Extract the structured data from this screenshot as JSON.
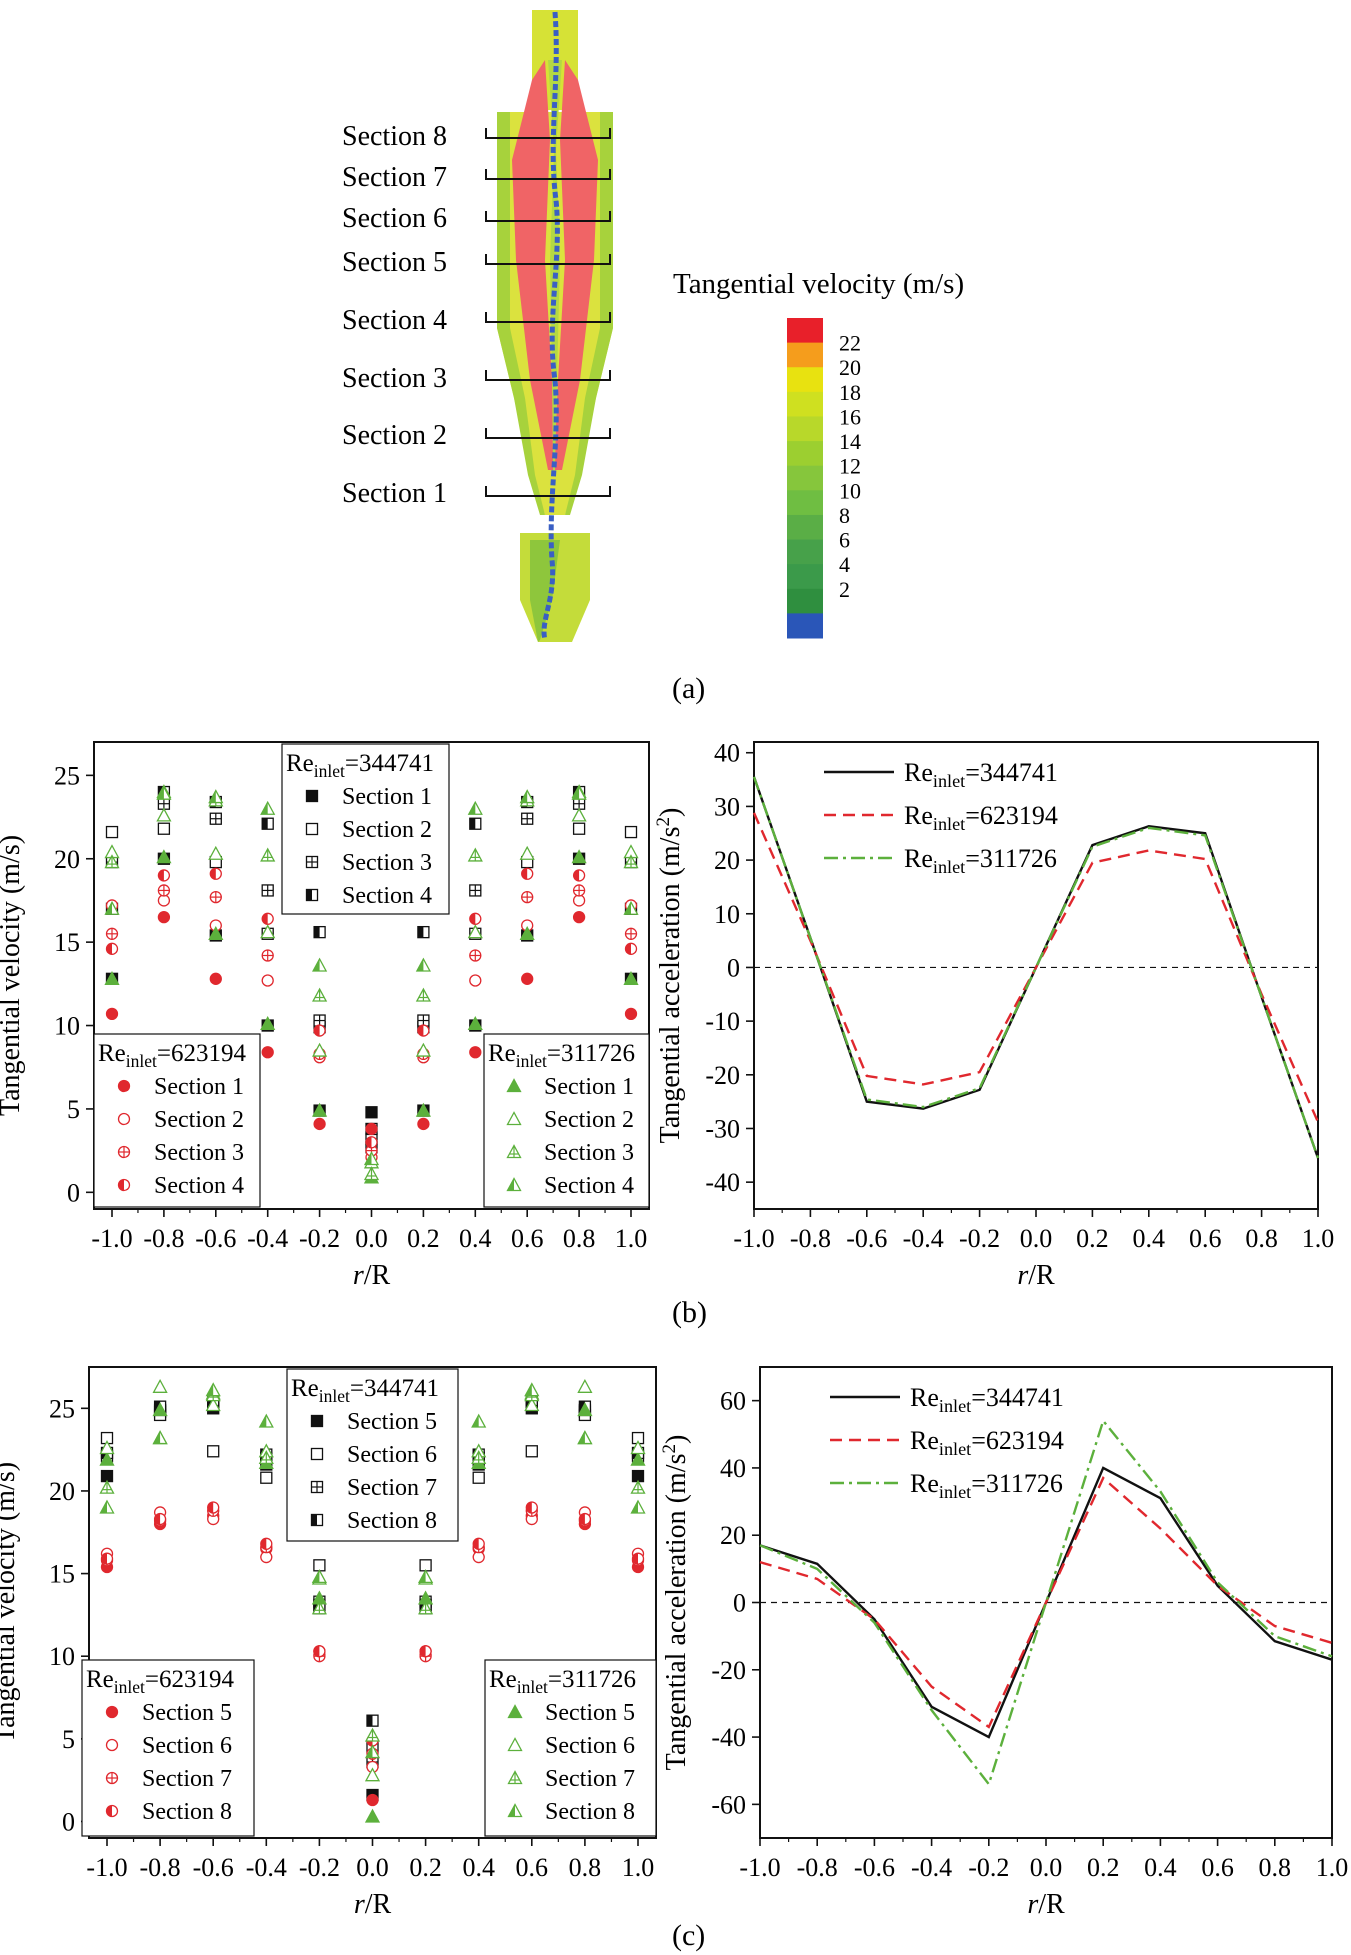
{
  "panel_a": {
    "sections": [
      "Section 8",
      "Section 7",
      "Section 6",
      "Section 5",
      "Section 4",
      "Section 3",
      "Section 2",
      "Section 1"
    ],
    "colorbar_title": "Tangential velocity (m/s)",
    "colorbar_ticks": [
      "22",
      "20",
      "18",
      "16",
      "14",
      "12",
      "10",
      "8",
      "6",
      "4",
      "2"
    ],
    "colorbar_colors": [
      "#e8202a",
      "#f59d1c",
      "#e8e210",
      "#cfe020",
      "#b8d82a",
      "#9ccf30",
      "#86c63c",
      "#6fbe42",
      "#5aae46",
      "#47a14a",
      "#3b9a4a",
      "#2f8f3f",
      "#2a56b8"
    ],
    "label": "(a)"
  },
  "panel_labels": [
    "(b)",
    "(c)"
  ],
  "chart_data": [
    {
      "type": "scatter",
      "label": "(b) left",
      "xlabel": "r/R",
      "ylabel": "Tangential velocity (m/s)",
      "xlim": [
        -1.0,
        1.0
      ],
      "ylim": [
        -1,
        27
      ],
      "xticks": [
        "-1.0",
        "-0.8",
        "-0.6",
        "-0.4",
        "-0.2",
        "0.0",
        "0.2",
        "0.4",
        "0.6",
        "0.8",
        "1.0"
      ],
      "yticks": [
        "0",
        "5",
        "10",
        "15",
        "20",
        "25"
      ],
      "x": [
        -1.0,
        -0.8,
        -0.6,
        -0.4,
        -0.2,
        0.0,
        0.2,
        0.4,
        0.6,
        0.8,
        1.0
      ],
      "legends": [
        {
          "title_main": "Re",
          "title_sub": "inlet",
          "title_value": "=344741",
          "color": "#111111",
          "entries": [
            "Section 1",
            "Section 2",
            "Section 3",
            "Section 4"
          ]
        },
        {
          "title_main": "Re",
          "title_sub": "inlet",
          "title_value": "=623194",
          "color": "#e0282e",
          "entries": [
            "Section 1",
            "Section 2",
            "Section 3",
            "Section 4"
          ]
        },
        {
          "title_main": "Re",
          "title_sub": "inlet",
          "title_value": "=311726",
          "color": "#5cb03c",
          "entries": [
            "Section 1",
            "Section 2",
            "Section 3",
            "Section 4"
          ]
        }
      ],
      "series": [
        {
          "group": 0,
          "marker": "filled-square",
          "values": [
            12.8,
            20.0,
            15.4,
            10.0,
            4.9,
            4.8,
            4.9,
            10.0,
            15.4,
            20.0,
            12.8
          ]
        },
        {
          "group": 0,
          "marker": "open-square",
          "values": [
            21.6,
            21.8,
            19.8,
            15.5,
            9.9,
            3.2,
            9.9,
            15.5,
            19.8,
            21.8,
            21.6
          ]
        },
        {
          "group": 0,
          "marker": "crossed-square",
          "values": [
            19.8,
            23.3,
            22.4,
            18.1,
            10.3,
            2.7,
            10.3,
            18.1,
            22.4,
            23.3,
            19.8
          ]
        },
        {
          "group": 0,
          "marker": "half-square",
          "values": [
            17.0,
            24.0,
            23.4,
            22.1,
            15.6,
            3.8,
            15.6,
            22.1,
            23.4,
            24.0,
            17.0
          ]
        },
        {
          "group": 1,
          "marker": "filled-circle",
          "values": [
            10.7,
            16.5,
            12.8,
            8.4,
            4.1,
            3.8,
            4.1,
            8.4,
            12.8,
            16.5,
            10.7
          ]
        },
        {
          "group": 1,
          "marker": "open-circle",
          "values": [
            17.2,
            17.5,
            16.0,
            12.7,
            8.1,
            2.1,
            8.1,
            12.7,
            16.0,
            17.5,
            17.2
          ]
        },
        {
          "group": 1,
          "marker": "crossed-circle",
          "values": [
            15.5,
            18.1,
            17.7,
            14.2,
            8.3,
            2.5,
            8.3,
            14.2,
            17.7,
            18.1,
            15.5
          ]
        },
        {
          "group": 1,
          "marker": "half-circle",
          "values": [
            14.6,
            19.0,
            19.1,
            16.4,
            9.7,
            3.0,
            9.7,
            16.4,
            19.1,
            19.0,
            14.6
          ]
        },
        {
          "group": 2,
          "marker": "filled-triangle",
          "values": [
            12.8,
            20.1,
            15.5,
            10.1,
            4.9,
            0.9,
            4.9,
            10.1,
            15.5,
            20.1,
            12.8
          ]
        },
        {
          "group": 2,
          "marker": "open-triangle",
          "values": [
            20.4,
            22.6,
            20.3,
            15.6,
            8.5,
            1.8,
            8.5,
            15.6,
            20.3,
            22.6,
            20.4
          ]
        },
        {
          "group": 2,
          "marker": "crossed-triangle",
          "values": [
            19.8,
            24.0,
            23.5,
            20.2,
            11.8,
            1.1,
            11.8,
            20.2,
            23.5,
            24.0,
            19.8
          ]
        },
        {
          "group": 2,
          "marker": "half-triangle",
          "values": [
            17.0,
            23.9,
            23.7,
            23.0,
            13.6,
            2.0,
            13.6,
            23.0,
            23.7,
            23.9,
            17.0
          ]
        }
      ]
    },
    {
      "type": "line",
      "label": "(b) right",
      "xlabel": "r/R",
      "ylabel": "Tangential acceleration (m/s2)",
      "xlim": [
        -1.0,
        1.0
      ],
      "ylim": [
        -45,
        42
      ],
      "xticks": [
        "-1.0",
        "-0.8",
        "-0.6",
        "-0.4",
        "-0.2",
        "0.0",
        "0.2",
        "0.4",
        "0.6",
        "0.8",
        "1.0"
      ],
      "yticks": [
        "40",
        "30",
        "20",
        "10",
        "0",
        "-10",
        "-20",
        "-30",
        "-40"
      ],
      "x": [
        -1.0,
        -0.8,
        -0.6,
        -0.4,
        -0.2,
        0.0,
        0.2,
        0.4,
        0.6,
        0.8,
        1.0
      ],
      "legend_position": "top-left",
      "series": [
        {
          "name_main": "Re",
          "name_sub": "inlet",
          "name_value": "=344741",
          "color": "#111111",
          "dash": "solid",
          "values": [
            35.5,
            5.5,
            -25.0,
            -26.3,
            -22.8,
            0.0,
            22.8,
            26.3,
            25.0,
            -5.5,
            -35.5
          ]
        },
        {
          "name_main": "Re",
          "name_sub": "inlet",
          "name_value": "=623194",
          "color": "#e0282e",
          "dash": "dashed",
          "values": [
            28.8,
            5.0,
            -20.2,
            -21.8,
            -19.5,
            0.0,
            19.5,
            21.8,
            20.2,
            -5.0,
            -28.8
          ]
        },
        {
          "name_main": "Re",
          "name_sub": "inlet",
          "name_value": "=311726",
          "color": "#5cb03c",
          "dash": "dash-dot",
          "values": [
            35.5,
            5.5,
            -24.6,
            -26.0,
            -22.5,
            0.0,
            22.5,
            26.0,
            24.6,
            -5.5,
            -35.5
          ]
        }
      ]
    },
    {
      "type": "scatter",
      "label": "(c) left",
      "xlabel": "r/R",
      "ylabel": "Tangential velocity (m/s)",
      "xlim": [
        -1.0,
        1.0
      ],
      "ylim": [
        -1,
        27.5
      ],
      "xticks": [
        "-1.0",
        "-0.8",
        "-0.6",
        "-0.4",
        "-0.2",
        "0.0",
        "0.2",
        "0.4",
        "0.6",
        "0.8",
        "1.0"
      ],
      "yticks": [
        "0",
        "5",
        "10",
        "15",
        "20",
        "25"
      ],
      "x": [
        -1.0,
        -0.8,
        -0.6,
        -0.4,
        -0.2,
        0.0,
        0.2,
        0.4,
        0.6,
        0.8,
        1.0
      ],
      "legends": [
        {
          "title_main": "Re",
          "title_sub": "inlet",
          "title_value": "=344741",
          "color": "#111111",
          "entries": [
            "Section 5",
            "Section 6",
            "Section 7",
            "Section 8"
          ]
        },
        {
          "title_main": "Re",
          "title_sub": "inlet",
          "title_value": "=623194",
          "color": "#e0282e",
          "entries": [
            "Section 5",
            "Section 6",
            "Section 7",
            "Section 8"
          ]
        },
        {
          "title_main": "Re",
          "title_sub": "inlet",
          "title_value": "=311726",
          "color": "#5cb03c",
          "entries": [
            "Section 5",
            "Section 6",
            "Section 7",
            "Section 8"
          ]
        }
      ],
      "series": [
        {
          "group": 0,
          "marker": "filled-square",
          "values": [
            20.9,
            24.8,
            25.0,
            21.6,
            12.9,
            1.6,
            12.9,
            21.6,
            25.0,
            24.8,
            20.9
          ]
        },
        {
          "group": 0,
          "marker": "open-square",
          "values": [
            23.2,
            24.6,
            22.4,
            20.8,
            15.5,
            4.5,
            15.5,
            20.8,
            22.4,
            24.6,
            23.2
          ]
        },
        {
          "group": 0,
          "marker": "crossed-square",
          "values": [
            22.1,
            24.9,
            25.3,
            22.0,
            13.3,
            3.6,
            13.3,
            22.0,
            25.3,
            24.9,
            22.1
          ]
        },
        {
          "group": 0,
          "marker": "half-square",
          "values": [
            22.3,
            25.1,
            25.5,
            22.2,
            13.1,
            6.1,
            13.1,
            22.2,
            25.5,
            25.1,
            22.3
          ]
        },
        {
          "group": 1,
          "marker": "filled-circle",
          "values": [
            15.4,
            18.0,
            18.5,
            16.5,
            10.1,
            1.3,
            10.1,
            16.5,
            18.5,
            18.0,
            15.4
          ]
        },
        {
          "group": 1,
          "marker": "open-circle",
          "values": [
            16.2,
            18.7,
            18.3,
            16.0,
            10.3,
            3.3,
            10.3,
            16.0,
            18.3,
            18.7,
            16.2
          ]
        },
        {
          "group": 1,
          "marker": "crossed-circle",
          "values": [
            15.8,
            18.2,
            18.8,
            16.6,
            10.0,
            4.1,
            10.0,
            16.6,
            18.8,
            18.2,
            15.8
          ]
        },
        {
          "group": 1,
          "marker": "half-circle",
          "values": [
            15.9,
            18.3,
            19.0,
            16.8,
            10.3,
            4.9,
            10.3,
            16.8,
            19.0,
            18.3,
            15.9
          ]
        },
        {
          "group": 2,
          "marker": "filled-triangle",
          "values": [
            21.9,
            24.9,
            25.9,
            21.7,
            13.5,
            0.3,
            13.5,
            21.7,
            25.9,
            24.9,
            21.9
          ]
        },
        {
          "group": 2,
          "marker": "open-triangle",
          "values": [
            22.6,
            26.3,
            25.2,
            22.4,
            14.7,
            2.8,
            14.7,
            22.4,
            25.2,
            26.3,
            22.6
          ]
        },
        {
          "group": 2,
          "marker": "crossed-triangle",
          "values": [
            20.2,
            23.2,
            25.8,
            22.0,
            12.9,
            5.2,
            12.9,
            22.0,
            25.8,
            23.2,
            20.2
          ]
        },
        {
          "group": 2,
          "marker": "half-triangle",
          "values": [
            19.0,
            23.2,
            26.1,
            24.2,
            14.8,
            4.2,
            14.8,
            24.2,
            26.1,
            23.2,
            19.0
          ]
        }
      ]
    },
    {
      "type": "line",
      "label": "(c) right",
      "xlabel": "r/R",
      "ylabel": "Tangential acceleration (m/s2)",
      "xlim": [
        -1.0,
        1.0
      ],
      "ylim": [
        -70,
        70
      ],
      "xticks": [
        "-1.0",
        "-0.8",
        "-0.6",
        "-0.4",
        "-0.2",
        "0.0",
        "0.2",
        "0.4",
        "0.6",
        "0.8",
        "1.0"
      ],
      "yticks": [
        "60",
        "40",
        "20",
        "0",
        "-20",
        "-40",
        "-60"
      ],
      "x": [
        -1.0,
        -0.8,
        -0.6,
        -0.4,
        -0.2,
        0.0,
        0.2,
        0.4,
        0.6,
        0.8,
        1.0
      ],
      "legend_position": "top-left",
      "series": [
        {
          "name_main": "Re",
          "name_sub": "inlet",
          "name_value": "=344741",
          "color": "#111111",
          "dash": "solid",
          "values": [
            17.0,
            11.5,
            -5.0,
            -31.0,
            -40.0,
            0.0,
            40.0,
            31.0,
            5.0,
            -11.5,
            -17.0
          ]
        },
        {
          "name_main": "Re",
          "name_sub": "inlet",
          "name_value": "=623194",
          "color": "#e0282e",
          "dash": "dashed",
          "values": [
            12.0,
            7.0,
            -5.0,
            -25.0,
            -37.0,
            0.0,
            37.0,
            22.0,
            5.0,
            -7.0,
            -12.0
          ]
        },
        {
          "name_main": "Re",
          "name_sub": "inlet",
          "name_value": "=311726",
          "color": "#5cb03c",
          "dash": "dash-dot",
          "values": [
            17.0,
            10.0,
            -6.0,
            -32.0,
            -54.0,
            0.0,
            54.0,
            33.0,
            6.0,
            -10.0,
            -16.0
          ]
        }
      ]
    }
  ]
}
